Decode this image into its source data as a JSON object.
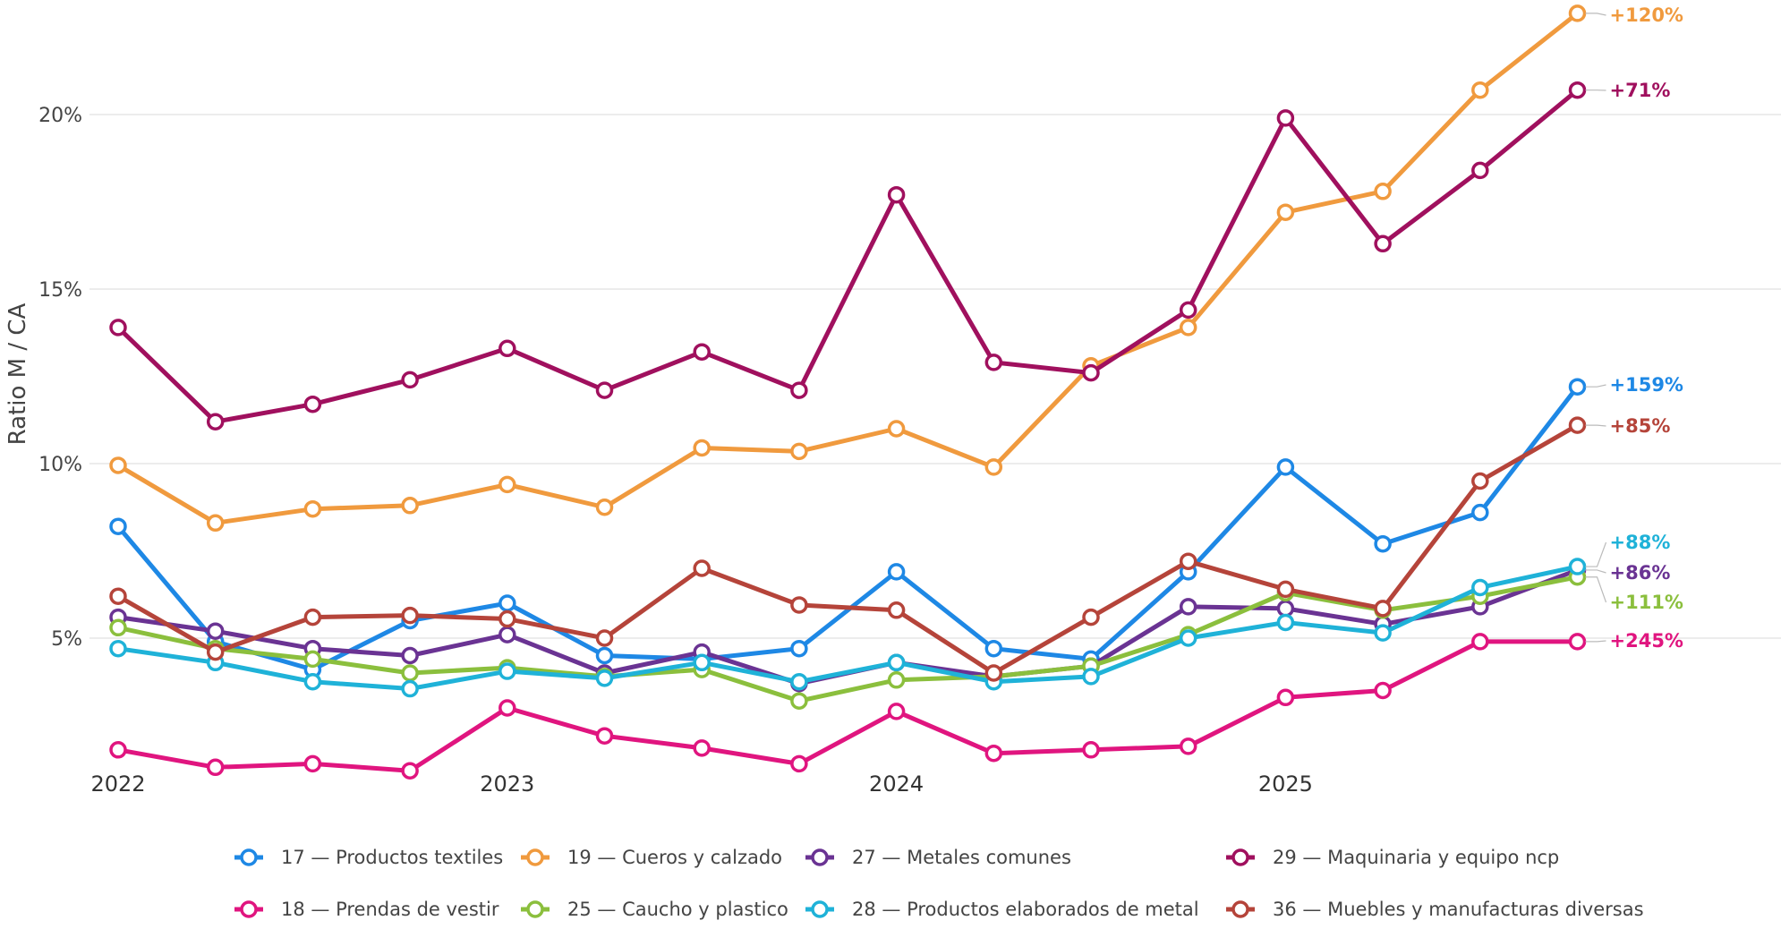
{
  "chart_data": {
    "type": "line",
    "ylabel": "Ratio M / CA",
    "y_ticks": [
      "5%",
      "10%",
      "15%",
      "20%"
    ],
    "ylim": [
      1.2,
      23.3
    ],
    "x_tick_labels": [
      "2022",
      "2023",
      "2024",
      "2025"
    ],
    "x": [
      "2022-Q1",
      "2022-Q2",
      "2022-Q3",
      "2022-Q4",
      "2023-Q1",
      "2023-Q2",
      "2023-Q3",
      "2023-Q4",
      "2024-Q1",
      "2024-Q2",
      "2024-Q3",
      "2024-Q4",
      "2025-Q1",
      "2025-Q2",
      "2025-Q3",
      "2025-Q4"
    ],
    "grid": true,
    "legend_position": "bottom",
    "series": [
      {
        "name": "17 — Productos textiles",
        "color": "#1e88e5",
        "end_label": "+159%",
        "values": [
          8.2,
          4.9,
          4.1,
          5.5,
          6.0,
          4.5,
          4.4,
          4.7,
          6.9,
          4.7,
          4.4,
          6.9,
          9.9,
          7.7,
          8.6,
          12.2
        ]
      },
      {
        "name": "19 — Cueros y calzado",
        "color": "#f09a3e",
        "end_label": "+120%",
        "values": [
          9.95,
          8.3,
          8.7,
          8.8,
          9.4,
          8.75,
          10.45,
          10.35,
          11.0,
          9.9,
          12.8,
          13.9,
          17.2,
          17.8,
          20.7,
          22.9
        ]
      },
      {
        "name": "27 — Metales comunes",
        "color": "#6a3393",
        "end_label": "+86%",
        "values": [
          5.6,
          5.2,
          4.7,
          4.5,
          5.1,
          4.0,
          4.6,
          3.7,
          4.3,
          3.9,
          4.2,
          5.9,
          5.85,
          5.4,
          5.9,
          6.95
        ]
      },
      {
        "name": "29 — Maquinaria y equipo ncp",
        "color": "#a0105e",
        "end_label": "+71%",
        "values": [
          13.9,
          11.2,
          11.7,
          12.4,
          13.3,
          12.1,
          13.2,
          12.1,
          17.7,
          12.9,
          12.6,
          14.4,
          19.9,
          16.3,
          18.4,
          20.7
        ]
      },
      {
        "name": "18 — Prendas de vestir",
        "color": "#e0157f",
        "end_label": "+245%",
        "values": [
          1.8,
          1.3,
          1.4,
          1.2,
          3.0,
          2.2,
          1.85,
          1.4,
          2.9,
          1.7,
          1.8,
          1.9,
          3.3,
          3.5,
          4.9,
          4.9
        ]
      },
      {
        "name": "25 — Caucho y plastico",
        "color": "#8bbf3d",
        "end_label": "+111%",
        "values": [
          5.3,
          4.7,
          4.4,
          4.0,
          4.15,
          3.9,
          4.1,
          3.2,
          3.8,
          3.9,
          4.2,
          5.1,
          6.3,
          5.8,
          6.2,
          6.75
        ]
      },
      {
        "name": "28 — Productos elaborados de metal",
        "color": "#1fb2d8",
        "end_label": "+88%",
        "values": [
          4.7,
          4.3,
          3.75,
          3.55,
          4.05,
          3.85,
          4.3,
          3.75,
          4.3,
          3.75,
          3.9,
          5.0,
          5.45,
          5.15,
          6.45,
          7.05
        ]
      },
      {
        "name": "36 — Muebles y manufacturas diversas",
        "color": "#b5443a",
        "end_label": "+85%",
        "values": [
          6.2,
          4.6,
          5.6,
          5.65,
          5.55,
          5.0,
          7.0,
          5.95,
          5.8,
          4.0,
          5.6,
          7.2,
          6.4,
          5.85,
          9.5,
          11.1
        ]
      }
    ]
  }
}
